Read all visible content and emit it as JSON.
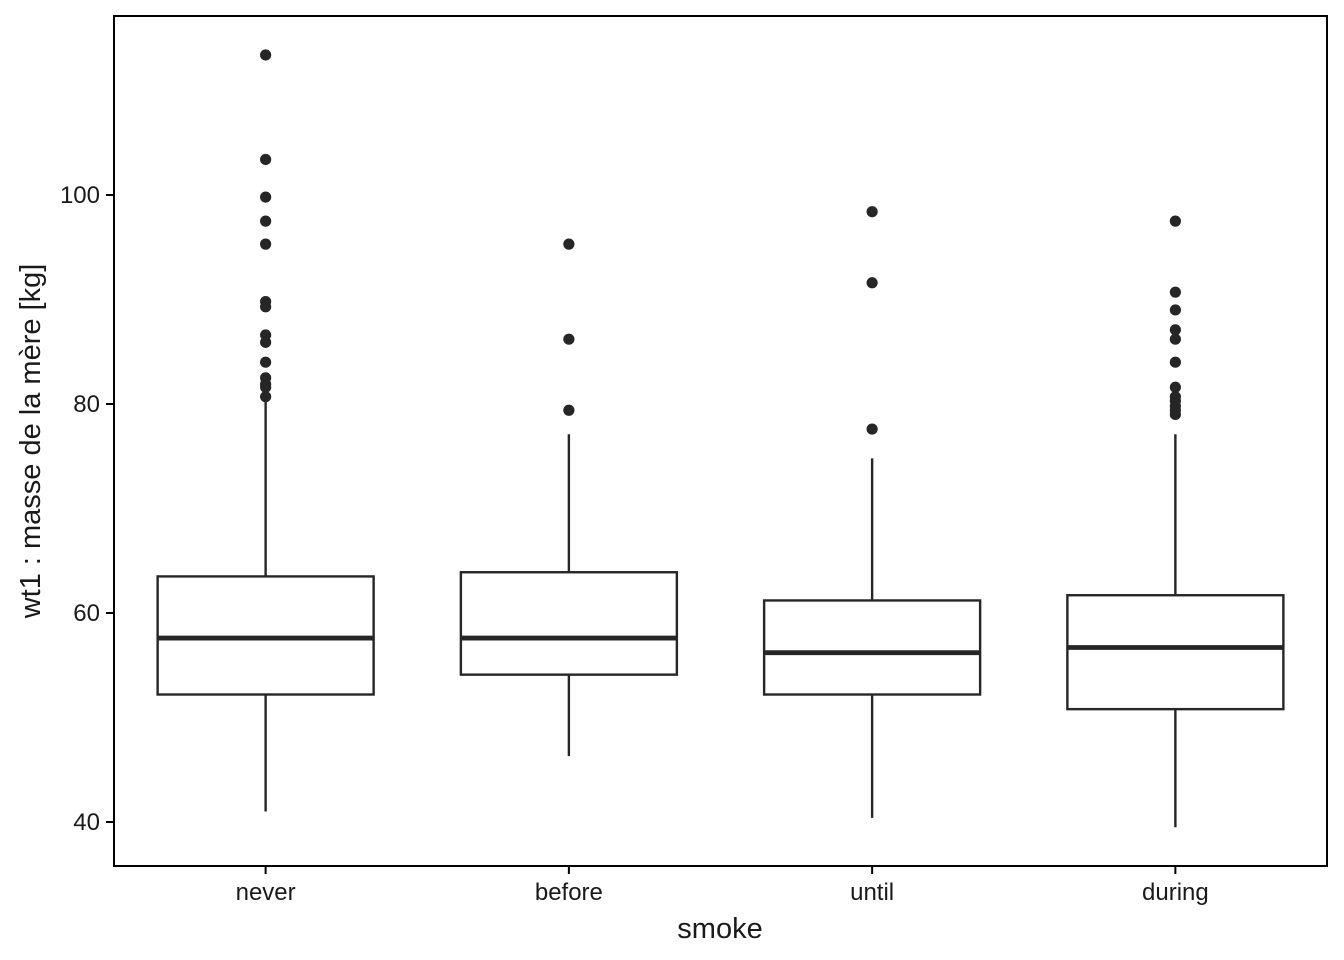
{
  "chart_data": {
    "type": "boxplot",
    "title": "",
    "xlabel": "smoke",
    "ylabel": "wt1 : masse de la mère [kg]",
    "categories": [
      "never",
      "before",
      "until",
      "during"
    ],
    "ylim": [
      36,
      117
    ],
    "yticks": [
      40,
      60,
      80,
      100
    ],
    "ytick_labels": [
      "40",
      "60",
      "80",
      "100"
    ],
    "grid": false,
    "boxes": [
      {
        "category": "never",
        "whisker_low": 41.0,
        "q1": 52.2,
        "median": 57.6,
        "q3": 63.5,
        "whisker_high": 80.3,
        "outliers": [
          113.4,
          103.4,
          99.8,
          97.5,
          95.3,
          89.8,
          89.3,
          86.6,
          85.9,
          84.0,
          82.5,
          81.9,
          81.6,
          80.7
        ]
      },
      {
        "category": "before",
        "whisker_low": 46.3,
        "q1": 54.1,
        "median": 57.6,
        "q3": 63.9,
        "whisker_high": 77.1,
        "outliers": [
          95.3,
          86.2,
          79.4
        ]
      },
      {
        "category": "until",
        "whisker_low": 40.4,
        "q1": 52.2,
        "median": 56.2,
        "q3": 61.2,
        "whisker_high": 74.8,
        "outliers": [
          98.4,
          91.6,
          77.6
        ]
      },
      {
        "category": "during",
        "whisker_low": 39.5,
        "q1": 50.8,
        "median": 56.7,
        "q3": 61.7,
        "whisker_high": 77.1,
        "outliers": [
          97.5,
          90.7,
          89.0,
          87.1,
          86.2,
          84.0,
          81.6,
          80.7,
          80.3,
          79.8,
          79.4,
          79.0
        ]
      }
    ],
    "colors": {
      "box_stroke": "#262626",
      "point": "#262626",
      "frame": "#000000",
      "background": "#ffffff"
    }
  }
}
